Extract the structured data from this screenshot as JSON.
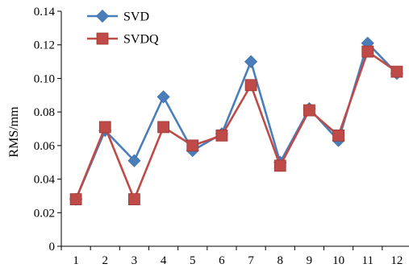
{
  "chart_data": {
    "type": "line",
    "title": "",
    "xlabel": "",
    "ylabel": "RMS/mm",
    "categories": [
      "1",
      "2",
      "3",
      "4",
      "5",
      "6",
      "7",
      "8",
      "9",
      "10",
      "11",
      "12"
    ],
    "ylim": [
      0,
      0.14
    ],
    "yticks": [
      "0",
      "0.02",
      "0.04",
      "0.06",
      "0.08",
      "0.10",
      "0.12",
      "0.14"
    ],
    "grid": false,
    "legend_position": "top-left",
    "series": [
      {
        "name": "SVD",
        "color": "#4a7ebb",
        "marker": "diamond",
        "values": [
          0.028,
          0.069,
          0.051,
          0.089,
          0.057,
          0.067,
          0.11,
          0.05,
          0.082,
          0.063,
          0.121,
          0.103
        ]
      },
      {
        "name": "SVDQ",
        "color": "#be4b48",
        "marker": "square",
        "values": [
          0.028,
          0.071,
          0.028,
          0.071,
          0.06,
          0.066,
          0.096,
          0.048,
          0.081,
          0.066,
          0.116,
          0.104
        ]
      }
    ]
  }
}
